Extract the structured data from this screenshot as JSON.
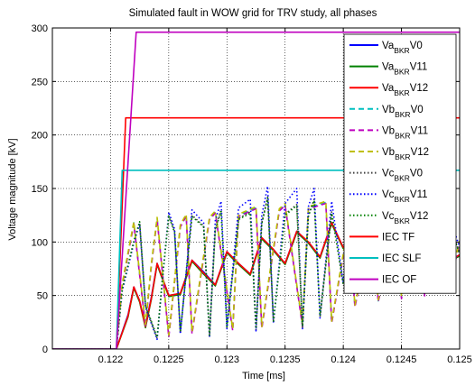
{
  "chart_data": {
    "type": "line",
    "title": "Simulated fault in WOW grid for TRV study, all phases",
    "xlabel": "Time [ms]",
    "ylabel": "Voltage magnitude [kV]",
    "xlim": [
      0.1215,
      0.125
    ],
    "ylim": [
      0,
      300
    ],
    "xticks": [
      0.122,
      0.1225,
      0.123,
      0.1235,
      0.124,
      0.1245,
      0.125
    ],
    "xtick_labels": [
      "0.122",
      "0.1225",
      "0.123",
      "0.1235",
      "0.124",
      "0.1245",
      "0.125"
    ],
    "yticks": [
      0,
      50,
      100,
      150,
      200,
      250,
      300
    ],
    "ytick_labels": [
      "0",
      "50",
      "100",
      "150",
      "200",
      "250",
      "300"
    ],
    "grid": true,
    "legend_position": "right",
    "series": [
      {
        "name": "VaBKRV0",
        "label": {
          "main": "Va",
          "sub": "BKR",
          "suffix": "V0"
        },
        "color": "#0000ff",
        "style": "solid",
        "x": [
          0.12,
          0.12205,
          0.12215,
          0.1222,
          0.12225,
          0.1223,
          0.12235,
          0.1224,
          0.1225,
          0.1226,
          0.1227,
          0.1228,
          0.1229,
          0.123,
          0.1231,
          0.1232,
          0.1233,
          0.1234,
          0.1235,
          0.1236,
          0.1237,
          0.1238,
          0.1239,
          0.124,
          0.1241,
          0.1243,
          0.1245,
          0.1247,
          0.1249,
          0.125
        ],
        "y": [
          0,
          0,
          32,
          58,
          45,
          22,
          48,
          80,
          50,
          52,
          83,
          72,
          60,
          91,
          80,
          70,
          104,
          93,
          80,
          110,
          100,
          86,
          118,
          95,
          104,
          100,
          88,
          95,
          82,
          88
        ]
      },
      {
        "name": "VaBKRV11",
        "label": {
          "main": "Va",
          "sub": "BKR",
          "suffix": "V11"
        },
        "color": "#008000",
        "style": "solid",
        "x": [
          0.12,
          0.12205,
          0.12215,
          0.1222,
          0.12225,
          0.1223,
          0.12235,
          0.1224,
          0.1225,
          0.1226,
          0.1227,
          0.1228,
          0.1229,
          0.123,
          0.1231,
          0.1232,
          0.1233,
          0.1234,
          0.1235,
          0.1236,
          0.1237,
          0.1238,
          0.1239,
          0.124,
          0.1241,
          0.1243,
          0.1245,
          0.1247,
          0.1249,
          0.125
        ],
        "y": [
          0,
          0,
          30,
          57,
          44,
          20,
          46,
          79,
          49,
          51,
          82,
          70,
          59,
          90,
          79,
          69,
          103,
          92,
          79,
          109,
          99,
          85,
          117,
          94,
          103,
          99,
          87,
          94,
          81,
          87
        ]
      },
      {
        "name": "VaBKRV12",
        "label": {
          "main": "Va",
          "sub": "BKR",
          "suffix": "V12"
        },
        "color": "#ff0000",
        "style": "solid",
        "x": [
          0.12,
          0.12205,
          0.12215,
          0.1222,
          0.12225,
          0.1223,
          0.12235,
          0.1224,
          0.1225,
          0.1226,
          0.1227,
          0.1228,
          0.1229,
          0.123,
          0.1231,
          0.1232,
          0.1233,
          0.1234,
          0.1235,
          0.1236,
          0.1237,
          0.1238,
          0.1239,
          0.124,
          0.1241,
          0.1243,
          0.1245,
          0.1247,
          0.1249,
          0.125
        ],
        "y": [
          0,
          0,
          31,
          58,
          45,
          21,
          47,
          80,
          50,
          52,
          83,
          71,
          60,
          91,
          80,
          70,
          104,
          93,
          80,
          110,
          100,
          86,
          118,
          95,
          104,
          100,
          88,
          95,
          82,
          88
        ]
      },
      {
        "name": "VbBKRV0",
        "label": {
          "main": "Vb",
          "sub": "BKR",
          "suffix": "V0"
        },
        "color": "#00bfbf",
        "style": "dashed",
        "x": [
          0.12,
          0.12205,
          0.1221,
          0.1222,
          0.1223,
          0.12235,
          0.1224,
          0.1225,
          0.1226,
          0.12265,
          0.1227,
          0.12285,
          0.1229,
          0.12305,
          0.1231,
          0.12325,
          0.1233,
          0.12345,
          0.1235,
          0.12365,
          0.1237,
          0.12385,
          0.1239,
          0.12405,
          0.1241,
          0.12425,
          0.1243,
          0.12445,
          0.1245,
          0.12465,
          0.1247,
          0.12485,
          0.1249,
          0.125
        ],
        "y": [
          0,
          0,
          60,
          118,
          22,
          78,
          122,
          12,
          115,
          125,
          15,
          122,
          128,
          18,
          125,
          132,
          20,
          130,
          135,
          22,
          132,
          137,
          25,
          120,
          40,
          118,
          45,
          115,
          48,
          112,
          50,
          110,
          55,
          100
        ]
      },
      {
        "name": "VbBKRV11",
        "label": {
          "main": "Vb",
          "sub": "BKR",
          "suffix": "V11"
        },
        "color": "#bf00bf",
        "style": "dashed",
        "x": [
          0.12,
          0.12205,
          0.1221,
          0.1222,
          0.1223,
          0.12235,
          0.1224,
          0.1225,
          0.1226,
          0.12265,
          0.1227,
          0.12285,
          0.1229,
          0.12305,
          0.1231,
          0.12325,
          0.1233,
          0.12345,
          0.1235,
          0.12365,
          0.1237,
          0.12385,
          0.1239,
          0.12405,
          0.1241,
          0.12425,
          0.1243,
          0.12445,
          0.1245,
          0.12465,
          0.1247,
          0.12485,
          0.1249,
          0.125
        ],
        "y": [
          0,
          0,
          59,
          117,
          21,
          77,
          121,
          11,
          114,
          124,
          14,
          121,
          127,
          17,
          124,
          131,
          19,
          129,
          134,
          21,
          131,
          136,
          24,
          119,
          39,
          117,
          44,
          114,
          47,
          111,
          49,
          109,
          54,
          99
        ]
      },
      {
        "name": "VbBKRV12",
        "label": {
          "main": "Vb",
          "sub": "BKR",
          "suffix": "V12"
        },
        "color": "#bfbf00",
        "style": "dashed",
        "x": [
          0.12,
          0.12205,
          0.1221,
          0.1222,
          0.1223,
          0.12235,
          0.1224,
          0.1225,
          0.1226,
          0.12265,
          0.1227,
          0.12285,
          0.1229,
          0.12305,
          0.1231,
          0.12325,
          0.1233,
          0.12345,
          0.1235,
          0.12365,
          0.1237,
          0.12385,
          0.1239,
          0.12405,
          0.1241,
          0.12425,
          0.1243,
          0.12445,
          0.1245,
          0.12465,
          0.1247,
          0.12485,
          0.1249,
          0.125
        ],
        "y": [
          0,
          0,
          61,
          119,
          23,
          79,
          123,
          13,
          116,
          126,
          16,
          123,
          129,
          19,
          126,
          133,
          21,
          131,
          136,
          23,
          133,
          138,
          26,
          121,
          41,
          119,
          46,
          116,
          49,
          113,
          51,
          111,
          56,
          101
        ]
      },
      {
        "name": "VcBKRV0",
        "label": {
          "main": "Vc",
          "sub": "BKR",
          "suffix": "V0"
        },
        "color": "#404040",
        "style": "dotted",
        "x": [
          0.12,
          0.12205,
          0.1221,
          0.1222,
          0.12225,
          0.1223,
          0.1224,
          0.12245,
          0.1225,
          0.12255,
          0.1226,
          0.1227,
          0.1228,
          0.12285,
          0.1229,
          0.12295,
          0.123,
          0.1231,
          0.1232,
          0.12325,
          0.1233,
          0.12335,
          0.1234,
          0.1235,
          0.1236,
          0.12365,
          0.1237,
          0.12375,
          0.1238,
          0.1239,
          0.124,
          0.1241,
          0.1243,
          0.1245,
          0.1247,
          0.1249,
          0.125
        ],
        "y": [
          0,
          0,
          55,
          100,
          118,
          40,
          10,
          70,
          125,
          110,
          15,
          125,
          115,
          12,
          112,
          130,
          20,
          122,
          128,
          18,
          118,
          142,
          25,
          126,
          135,
          20,
          125,
          140,
          30,
          128,
          60,
          132,
          62,
          125,
          70,
          120,
          90
        ]
      },
      {
        "name": "VcBKRV11",
        "label": {
          "main": "Vc",
          "sub": "BKR",
          "suffix": "V11"
        },
        "color": "#0000ff",
        "style": "dotted",
        "x": [
          0.12,
          0.12205,
          0.1221,
          0.1222,
          0.12225,
          0.1223,
          0.1224,
          0.12245,
          0.1225,
          0.12255,
          0.1226,
          0.1227,
          0.1228,
          0.12285,
          0.1229,
          0.12295,
          0.123,
          0.1231,
          0.1232,
          0.12325,
          0.1233,
          0.12335,
          0.1234,
          0.1235,
          0.1236,
          0.12365,
          0.1237,
          0.12375,
          0.1238,
          0.1239,
          0.124,
          0.1241,
          0.1243,
          0.1245,
          0.1247,
          0.1249,
          0.125
        ],
        "y": [
          0,
          0,
          54,
          99,
          117,
          39,
          9,
          69,
          128,
          112,
          14,
          130,
          118,
          11,
          120,
          138,
          19,
          132,
          140,
          17,
          125,
          152,
          24,
          136,
          150,
          19,
          133,
          150,
          29,
          138,
          62,
          145,
          64,
          135,
          72,
          128,
          95
        ]
      },
      {
        "name": "VcBKRV12",
        "label": {
          "main": "Vc",
          "sub": "BKR",
          "suffix": "V12"
        },
        "color": "#008000",
        "style": "dotted",
        "x": [
          0.12,
          0.12205,
          0.1221,
          0.1222,
          0.12225,
          0.1223,
          0.1224,
          0.12245,
          0.1225,
          0.12255,
          0.1226,
          0.1227,
          0.1228,
          0.12285,
          0.1229,
          0.12295,
          0.123,
          0.1231,
          0.1232,
          0.12325,
          0.1233,
          0.12335,
          0.1234,
          0.1235,
          0.1236,
          0.12365,
          0.1237,
          0.12375,
          0.1238,
          0.1239,
          0.124,
          0.1241,
          0.1243,
          0.1245,
          0.1247,
          0.1249,
          0.125
        ],
        "y": [
          0,
          0,
          56,
          101,
          119,
          41,
          11,
          71,
          124,
          109,
          16,
          124,
          114,
          13,
          111,
          129,
          21,
          121,
          127,
          19,
          117,
          141,
          26,
          125,
          134,
          21,
          124,
          139,
          31,
          127,
          61,
          131,
          63,
          124,
          71,
          119,
          89
        ]
      },
      {
        "name": "IEC TF",
        "label": {
          "main": "IEC TF",
          "sub": "",
          "suffix": ""
        },
        "color": "#ff0000",
        "style": "solid",
        "x": [
          0.12,
          0.12205,
          0.12213,
          0.125
        ],
        "y": [
          0,
          0,
          216,
          216
        ]
      },
      {
        "name": "IEC SLF",
        "label": {
          "main": "IEC SLF",
          "sub": "",
          "suffix": ""
        },
        "color": "#00bfbf",
        "style": "solid",
        "x": [
          0.12,
          0.12205,
          0.1221,
          0.125
        ],
        "y": [
          0,
          0,
          167,
          167
        ]
      },
      {
        "name": "IEC OF",
        "label": {
          "main": "IEC OF",
          "sub": "",
          "suffix": ""
        },
        "color": "#bf00bf",
        "style": "solid",
        "x": [
          0.12,
          0.12205,
          0.12222,
          0.125
        ],
        "y": [
          0,
          0,
          296,
          296
        ]
      }
    ]
  }
}
